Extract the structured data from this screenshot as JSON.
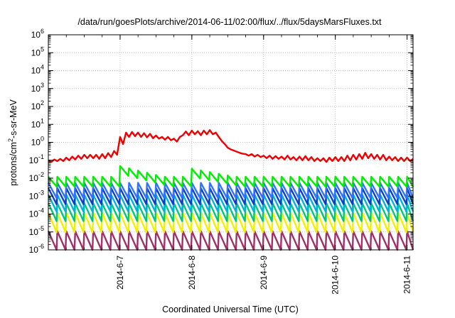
{
  "chart_data": {
    "type": "line",
    "title": "/data/run/goesPlots/archive/2014-06-11/02:00/flux/../flux/5daysMarsFluxes.txt",
    "xlabel": "Coordinated Universal Time (UTC)",
    "ylabel": {
      "base": "protons/cm",
      "sup": "2",
      "rest": "-s-sr-MeV"
    },
    "y_scale": "log",
    "ylim": [
      1e-06,
      1000000.0
    ],
    "xlim": [
      "2014-06-06 00:00",
      "2014-06-11 02:00"
    ],
    "grid": true,
    "legend": "none",
    "y_ticks": [
      {
        "base": "10",
        "exp": "6",
        "value": 1000000.0
      },
      {
        "base": "10",
        "exp": "5",
        "value": 100000.0
      },
      {
        "base": "10",
        "exp": "4",
        "value": 10000.0
      },
      {
        "base": "10",
        "exp": "3",
        "value": 1000.0
      },
      {
        "base": "10",
        "exp": "2",
        "value": 100.0
      },
      {
        "base": "10",
        "exp": "1",
        "value": 10.0
      },
      {
        "base": "10",
        "exp": "0",
        "value": 1.0
      },
      {
        "base": "10",
        "exp": "-1",
        "value": 0.1
      },
      {
        "base": "10",
        "exp": "-2",
        "value": 0.01
      },
      {
        "base": "10",
        "exp": "-3",
        "value": 0.001
      },
      {
        "base": "10",
        "exp": "-4",
        "value": 0.0001
      },
      {
        "base": "10",
        "exp": "-5",
        "value": 1e-05
      },
      {
        "base": "10",
        "exp": "-6",
        "value": 1e-06
      }
    ],
    "x_ticks": [
      "2014-6-7",
      "2014-6-8",
      "2014-6-9",
      "2014-6-10",
      "2014-6-11"
    ],
    "series": [
      {
        "color": "#ee0000",
        "values": [
          [
            "2014-06-06 00:00",
            0.1
          ],
          [
            "2014-06-06 01:00",
            0.08
          ],
          [
            "2014-06-06 02:00",
            0.11
          ],
          [
            "2014-06-06 03:00",
            0.09
          ],
          [
            "2014-06-06 04:00",
            0.12
          ],
          [
            "2014-06-06 05:00",
            0.09
          ],
          [
            "2014-06-06 06:00",
            0.14
          ],
          [
            "2014-06-06 07:00",
            0.1
          ],
          [
            "2014-06-06 08:00",
            0.16
          ],
          [
            "2014-06-06 09:00",
            0.11
          ],
          [
            "2014-06-06 10:00",
            0.18
          ],
          [
            "2014-06-06 11:00",
            0.12
          ],
          [
            "2014-06-06 12:00",
            0.2
          ],
          [
            "2014-06-06 13:00",
            0.13
          ],
          [
            "2014-06-06 14:00",
            0.2
          ],
          [
            "2014-06-06 15:00",
            0.13
          ],
          [
            "2014-06-06 16:00",
            0.2
          ],
          [
            "2014-06-06 17:00",
            0.12
          ],
          [
            "2014-06-06 18:00",
            0.22
          ],
          [
            "2014-06-06 19:00",
            0.13
          ],
          [
            "2014-06-06 20:00",
            0.25
          ],
          [
            "2014-06-06 21:00",
            0.15
          ],
          [
            "2014-06-06 22:00",
            0.33
          ],
          [
            "2014-06-06 23:00",
            0.2
          ],
          [
            "2014-06-07 00:00",
            2.0
          ],
          [
            "2014-06-07 01:00",
            0.8
          ],
          [
            "2014-06-07 02:00",
            3.5
          ],
          [
            "2014-06-07 03:00",
            2.0
          ],
          [
            "2014-06-07 04:00",
            3.8
          ],
          [
            "2014-06-07 05:00",
            2.2
          ],
          [
            "2014-06-07 06:00",
            3.5
          ],
          [
            "2014-06-07 07:00",
            2.0
          ],
          [
            "2014-06-07 08:00",
            3.2
          ],
          [
            "2014-06-07 09:00",
            1.9
          ],
          [
            "2014-06-07 10:00",
            3.0
          ],
          [
            "2014-06-07 11:00",
            1.7
          ],
          [
            "2014-06-07 12:00",
            2.4
          ],
          [
            "2014-06-07 13:00",
            1.6
          ],
          [
            "2014-06-07 14:00",
            2.0
          ],
          [
            "2014-06-07 15:00",
            1.4
          ],
          [
            "2014-06-07 16:00",
            2.0
          ],
          [
            "2014-06-07 17:00",
            1.3
          ],
          [
            "2014-06-07 18:00",
            1.6
          ],
          [
            "2014-06-07 19:00",
            1.1
          ],
          [
            "2014-06-07 20:00",
            2.0
          ],
          [
            "2014-06-07 21:00",
            2.5
          ],
          [
            "2014-06-07 22:00",
            4.0
          ],
          [
            "2014-06-07 23:00",
            2.5
          ],
          [
            "2014-06-08 00:00",
            4.5
          ],
          [
            "2014-06-08 01:00",
            2.8
          ],
          [
            "2014-06-08 02:00",
            4.2
          ],
          [
            "2014-06-08 03:00",
            2.5
          ],
          [
            "2014-06-08 04:00",
            4.5
          ],
          [
            "2014-06-08 05:00",
            2.8
          ],
          [
            "2014-06-08 06:00",
            4.8
          ],
          [
            "2014-06-08 07:00",
            2.8
          ],
          [
            "2014-06-08 08:00",
            3.5
          ],
          [
            "2014-06-08 09:00",
            2.0
          ],
          [
            "2014-06-08 10:00",
            1.2
          ],
          [
            "2014-06-08 11:00",
            0.8
          ],
          [
            "2014-06-08 12:00",
            0.5
          ],
          [
            "2014-06-08 13:00",
            0.4
          ],
          [
            "2014-06-08 14:00",
            0.35
          ],
          [
            "2014-06-08 15:00",
            0.3
          ],
          [
            "2014-06-08 16:00",
            0.26
          ],
          [
            "2014-06-08 17:00",
            0.23
          ],
          [
            "2014-06-08 18:00",
            0.22
          ],
          [
            "2014-06-08 19:00",
            0.18
          ],
          [
            "2014-06-08 20:00",
            0.22
          ],
          [
            "2014-06-08 21:00",
            0.16
          ],
          [
            "2014-06-08 22:00",
            0.2
          ],
          [
            "2014-06-08 23:00",
            0.15
          ],
          [
            "2014-06-09 00:00",
            0.18
          ],
          [
            "2014-06-09 01:00",
            0.13
          ],
          [
            "2014-06-09 02:00",
            0.18
          ],
          [
            "2014-06-09 03:00",
            0.12
          ],
          [
            "2014-06-09 04:00",
            0.17
          ],
          [
            "2014-06-09 05:00",
            0.12
          ],
          [
            "2014-06-09 06:00",
            0.16
          ],
          [
            "2014-06-09 07:00",
            0.11
          ],
          [
            "2014-06-09 08:00",
            0.18
          ],
          [
            "2014-06-09 09:00",
            0.11
          ],
          [
            "2014-06-09 10:00",
            0.15
          ],
          [
            "2014-06-09 11:00",
            0.1
          ],
          [
            "2014-06-09 12:00",
            0.16
          ],
          [
            "2014-06-09 13:00",
            0.1
          ],
          [
            "2014-06-09 14:00",
            0.17
          ],
          [
            "2014-06-09 15:00",
            0.1
          ],
          [
            "2014-06-09 16:00",
            0.15
          ],
          [
            "2014-06-09 17:00",
            0.09
          ],
          [
            "2014-06-09 18:00",
            0.13
          ],
          [
            "2014-06-09 19:00",
            0.09
          ],
          [
            "2014-06-09 20:00",
            0.13
          ],
          [
            "2014-06-09 21:00",
            0.08
          ],
          [
            "2014-06-09 22:00",
            0.14
          ],
          [
            "2014-06-09 23:00",
            0.09
          ],
          [
            "2014-06-10 00:00",
            0.15
          ],
          [
            "2014-06-10 01:00",
            0.09
          ],
          [
            "2014-06-10 02:00",
            0.15
          ],
          [
            "2014-06-10 03:00",
            0.09
          ],
          [
            "2014-06-10 04:00",
            0.18
          ],
          [
            "2014-06-10 05:00",
            0.1
          ],
          [
            "2014-06-10 06:00",
            0.2
          ],
          [
            "2014-06-10 07:00",
            0.11
          ],
          [
            "2014-06-10 08:00",
            0.22
          ],
          [
            "2014-06-10 09:00",
            0.12
          ],
          [
            "2014-06-10 10:00",
            0.26
          ],
          [
            "2014-06-10 11:00",
            0.13
          ],
          [
            "2014-06-10 12:00",
            0.22
          ],
          [
            "2014-06-10 13:00",
            0.12
          ],
          [
            "2014-06-10 14:00",
            0.2
          ],
          [
            "2014-06-10 15:00",
            0.11
          ],
          [
            "2014-06-10 16:00",
            0.2
          ],
          [
            "2014-06-10 17:00",
            0.1
          ],
          [
            "2014-06-10 18:00",
            0.16
          ],
          [
            "2014-06-10 19:00",
            0.1
          ],
          [
            "2014-06-10 20:00",
            0.15
          ],
          [
            "2014-06-10 21:00",
            0.09
          ],
          [
            "2014-06-10 22:00",
            0.14
          ],
          [
            "2014-06-10 23:00",
            0.09
          ],
          [
            "2014-06-11 00:00",
            0.14
          ],
          [
            "2014-06-11 01:00",
            0.09
          ],
          [
            "2014-06-11 02:00",
            0.12
          ]
        ]
      },
      {
        "color": "#00ee00",
        "baseline": 0.012,
        "amplitude_decades": 0.55,
        "events": [
          [
            "2014-06-07 00:00",
            0.6
          ],
          [
            "2014-06-08 00:00",
            0.45
          ]
        ]
      },
      {
        "color": "#2f73ff",
        "baseline": 0.0055,
        "amplitude_decades": 0.85
      },
      {
        "color": "#0a3fc8",
        "baseline": 0.0028,
        "amplitude_decades": 0.9
      },
      {
        "color": "#00b4d8",
        "baseline": 0.0012,
        "amplitude_decades": 0.95
      },
      {
        "color": "#00c878",
        "baseline": 0.0004,
        "amplitude_decades": 1.0
      },
      {
        "color": "#f0f000",
        "baseline": 0.00012,
        "amplitude_decades": 1.1
      },
      {
        "color": "#a03068",
        "baseline": 1.1e-05,
        "amplitude_decades": 1.35
      }
    ]
  }
}
